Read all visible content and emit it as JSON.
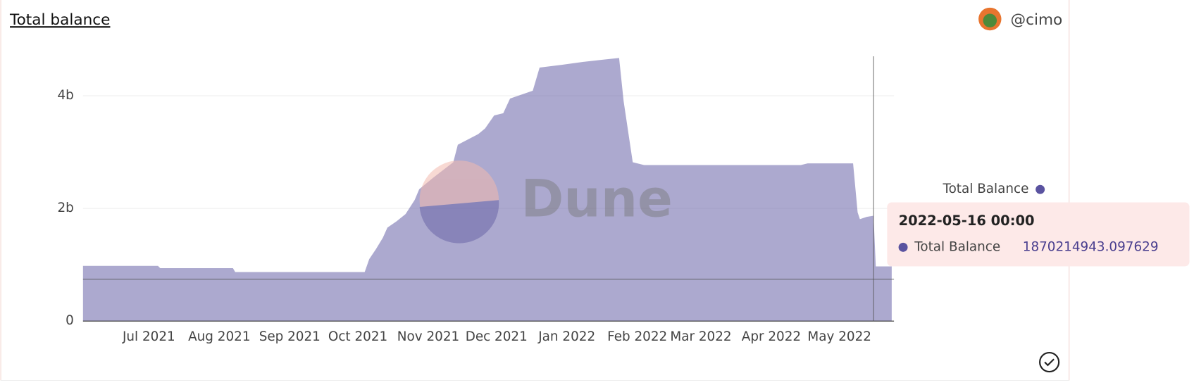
{
  "chart_data": {
    "type": "area",
    "title": "Total balance",
    "author": "@cimo",
    "watermark": "Dune",
    "x": [
      "2021-06-02",
      "2021-07-05",
      "2021-07-06",
      "2021-08-07",
      "2021-08-08",
      "2021-10-04",
      "2021-10-06",
      "2021-10-09",
      "2021-10-12",
      "2021-10-14",
      "2021-10-18",
      "2021-10-22",
      "2021-10-26",
      "2021-10-28",
      "2021-11-03",
      "2021-11-12",
      "2021-11-14",
      "2021-11-23",
      "2021-11-26",
      "2021-11-30",
      "2021-12-04",
      "2021-12-07",
      "2021-12-17",
      "2021-12-20",
      "2021-12-30",
      "2022-01-08",
      "2022-01-17",
      "2022-01-24",
      "2022-01-26",
      "2022-01-30",
      "2022-02-04",
      "2022-04-14",
      "2022-04-17",
      "2022-05-07",
      "2022-05-09",
      "2022-05-10",
      "2022-05-13",
      "2022-05-16",
      "2022-05-17",
      "2022-05-24"
    ],
    "series": [
      {
        "name": "Total Balance",
        "color": "#5a53a0",
        "values": [
          980000000,
          980000000,
          940000000,
          940000000,
          870000000,
          870000000,
          1100000000,
          1280000000,
          1480000000,
          1660000000,
          1770000000,
          1900000000,
          2150000000,
          2340000000,
          2540000000,
          2820000000,
          3130000000,
          3320000000,
          3420000000,
          3650000000,
          3690000000,
          3950000000,
          4090000000,
          4500000000,
          4550000000,
          4600000000,
          4640000000,
          4670000000,
          3900000000,
          2820000000,
          2770000000,
          2770000000,
          2800000000,
          2800000000,
          1930000000,
          1810000000,
          1850000000,
          1870214943.097629,
          970000000,
          970000000
        ]
      }
    ],
    "xlim": [
      "2021-06-02",
      "2022-05-25"
    ],
    "xticks": [
      {
        "value": "2021-07-01",
        "label": "Jul 2021"
      },
      {
        "value": "2021-08-01",
        "label": "Aug 2021"
      },
      {
        "value": "2021-09-01",
        "label": "Sep 2021"
      },
      {
        "value": "2021-10-01",
        "label": "Oct 2021"
      },
      {
        "value": "2021-11-01",
        "label": "Nov 2021"
      },
      {
        "value": "2021-12-01",
        "label": "Dec 2021"
      },
      {
        "value": "2022-01-01",
        "label": "Jan 2022"
      },
      {
        "value": "2022-02-01",
        "label": "Feb 2022"
      },
      {
        "value": "2022-03-01",
        "label": "Mar 2022"
      },
      {
        "value": "2022-04-01",
        "label": "Apr 2022"
      },
      {
        "value": "2022-05-01",
        "label": "May 2022"
      }
    ],
    "ylim": [
      0,
      4700000000
    ],
    "yticks": [
      0,
      {
        "value": 2000000000,
        "label": "2b"
      },
      {
        "value": 4000000000,
        "label": "4b"
      }
    ],
    "grid": true,
    "legend": "right",
    "tooltip_title": "2022-05-16 00:00"
  }
}
